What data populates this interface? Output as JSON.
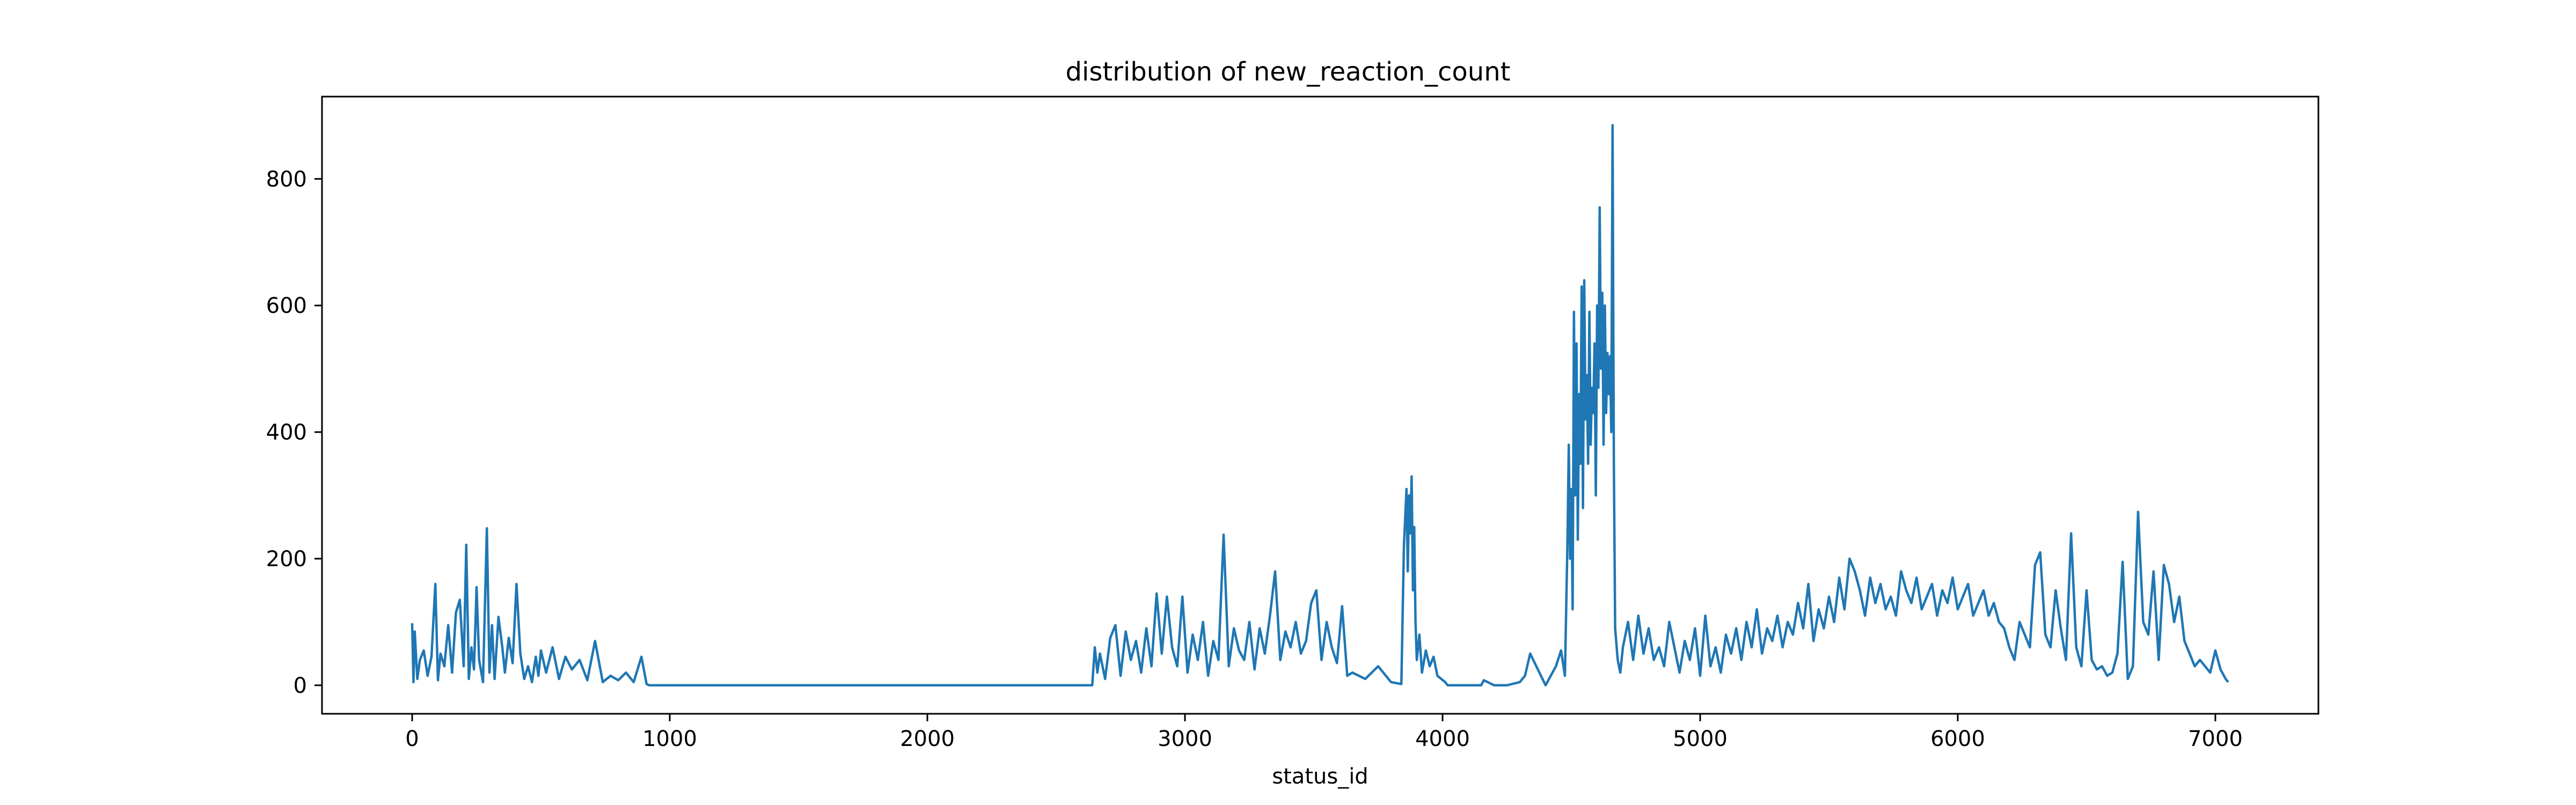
{
  "chart_data": {
    "type": "line",
    "title": "distribution of new_reaction_count",
    "xlabel": "status_id",
    "ylabel": "",
    "xlim": [
      -350,
      7400
    ],
    "ylim": [
      -45,
      930
    ],
    "xticks": [
      0,
      1000,
      2000,
      3000,
      4000,
      5000,
      6000,
      7000
    ],
    "yticks": [
      0,
      200,
      400,
      600,
      800
    ],
    "grid": false,
    "legend": "none",
    "color": "#1f77b4",
    "series": [
      {
        "x": [
          0,
          5,
          10,
          20,
          30,
          45,
          60,
          75,
          90,
          100,
          110,
          125,
          140,
          155,
          170,
          185,
          200,
          210,
          220,
          230,
          240,
          250,
          260,
          275,
          290,
          300,
          310,
          320,
          335,
          350,
          360,
          375,
          390,
          405,
          420,
          435,
          450,
          465,
          480,
          490,
          500,
          520,
          545,
          570,
          595,
          620,
          650,
          680,
          710,
          740,
          770,
          800,
          830,
          860,
          890,
          910,
          920,
          1000,
          1500,
          2000,
          2500,
          2640,
          2650,
          2660,
          2670,
          2690,
          2710,
          2730,
          2750,
          2770,
          2790,
          2810,
          2830,
          2850,
          2870,
          2890,
          2910,
          2930,
          2950,
          2970,
          2990,
          3010,
          3030,
          3050,
          3070,
          3090,
          3110,
          3130,
          3150,
          3170,
          3190,
          3210,
          3230,
          3250,
          3270,
          3290,
          3310,
          3330,
          3350,
          3370,
          3390,
          3410,
          3430,
          3450,
          3470,
          3490,
          3510,
          3530,
          3550,
          3570,
          3590,
          3610,
          3630,
          3650,
          3700,
          3750,
          3800,
          3840,
          3850,
          3860,
          3865,
          3870,
          3875,
          3880,
          3885,
          3890,
          3895,
          3900,
          3910,
          3920,
          3935,
          3950,
          3965,
          3980,
          3995,
          4010,
          4020,
          4050,
          4100,
          4150,
          4160,
          4200,
          4250,
          4300,
          4320,
          4340,
          4400,
          4440,
          4460,
          4475,
          4485,
          4490,
          4495,
          4500,
          4505,
          4510,
          4515,
          4520,
          4525,
          4530,
          4535,
          4540,
          4545,
          4550,
          4555,
          4560,
          4565,
          4570,
          4575,
          4580,
          4585,
          4590,
          4595,
          4600,
          4605,
          4610,
          4615,
          4620,
          4625,
          4630,
          4635,
          4640,
          4645,
          4650,
          4655,
          4660,
          4665,
          4670,
          4680,
          4690,
          4700,
          4720,
          4740,
          4760,
          4780,
          4800,
          4820,
          4840,
          4860,
          4880,
          4900,
          4920,
          4940,
          4960,
          4980,
          5000,
          5020,
          5040,
          5060,
          5080,
          5100,
          5120,
          5140,
          5160,
          5180,
          5200,
          5220,
          5240,
          5260,
          5280,
          5300,
          5320,
          5340,
          5360,
          5380,
          5400,
          5420,
          5440,
          5460,
          5480,
          5500,
          5520,
          5540,
          5560,
          5580,
          5600,
          5620,
          5640,
          5660,
          5680,
          5700,
          5720,
          5740,
          5760,
          5780,
          5800,
          5820,
          5840,
          5860,
          5880,
          5900,
          5920,
          5940,
          5960,
          5980,
          6000,
          6020,
          6040,
          6060,
          6080,
          6100,
          6120,
          6140,
          6160,
          6180,
          6200,
          6220,
          6240,
          6260,
          6280,
          6300,
          6320,
          6340,
          6360,
          6380,
          6400,
          6420,
          6440,
          6460,
          6480,
          6500,
          6520,
          6540,
          6560,
          6580,
          6600,
          6620,
          6640,
          6660,
          6680,
          6700,
          6720,
          6740,
          6760,
          6780,
          6800,
          6820,
          6840,
          6860,
          6880,
          6900,
          6920,
          6940,
          6960,
          6980,
          7000,
          7020,
          7040,
          7050
        ],
        "y": [
          98,
          5,
          85,
          10,
          40,
          55,
          15,
          45,
          160,
          8,
          50,
          30,
          95,
          20,
          115,
          135,
          30,
          222,
          10,
          60,
          25,
          155,
          40,
          5,
          248,
          20,
          95,
          10,
          108,
          60,
          20,
          75,
          35,
          160,
          50,
          10,
          30,
          5,
          45,
          15,
          55,
          20,
          60,
          10,
          45,
          25,
          40,
          8,
          70,
          5,
          15,
          8,
          20,
          5,
          45,
          2,
          0,
          0,
          0,
          0,
          0,
          0,
          60,
          20,
          50,
          10,
          75,
          95,
          15,
          85,
          40,
          70,
          20,
          90,
          30,
          145,
          50,
          140,
          60,
          30,
          140,
          20,
          80,
          40,
          100,
          15,
          70,
          40,
          238,
          30,
          90,
          55,
          40,
          100,
          25,
          90,
          50,
          110,
          180,
          40,
          85,
          60,
          100,
          50,
          70,
          130,
          150,
          40,
          100,
          60,
          35,
          125,
          15,
          20,
          10,
          30,
          5,
          2,
          220,
          310,
          180,
          300,
          240,
          330,
          150,
          250,
          100,
          40,
          80,
          20,
          55,
          30,
          45,
          15,
          10,
          5,
          0,
          0,
          0,
          0,
          8,
          0,
          0,
          5,
          15,
          50,
          0,
          30,
          55,
          15,
          230,
          380,
          200,
          310,
          120,
          590,
          300,
          540,
          230,
          460,
          350,
          630,
          280,
          640,
          420,
          490,
          350,
          590,
          380,
          470,
          430,
          540,
          300,
          600,
          470,
          755,
          500,
          620,
          380,
          600,
          430,
          525,
          460,
          520,
          400,
          885,
          350,
          90,
          40,
          20,
          60,
          100,
          40,
          110,
          50,
          90,
          40,
          60,
          30,
          100,
          60,
          20,
          70,
          40,
          90,
          15,
          110,
          30,
          60,
          20,
          80,
          50,
          90,
          40,
          100,
          60,
          120,
          50,
          90,
          70,
          110,
          60,
          100,
          80,
          130,
          90,
          160,
          70,
          120,
          90,
          140,
          100,
          170,
          120,
          200,
          180,
          150,
          110,
          170,
          130,
          160,
          120,
          140,
          110,
          180,
          150,
          130,
          170,
          120,
          140,
          160,
          110,
          150,
          130,
          170,
          120,
          140,
          160,
          110,
          130,
          150,
          110,
          130,
          100,
          90,
          60,
          40,
          100,
          80,
          60,
          190,
          210,
          80,
          60,
          150,
          90,
          40,
          240,
          60,
          30,
          150,
          40,
          25,
          30,
          15,
          20,
          50,
          195,
          10,
          30,
          274,
          100,
          80,
          180,
          40,
          190,
          160,
          100,
          140,
          70,
          50,
          30,
          40,
          30,
          20,
          55,
          25,
          10,
          5
        ]
      }
    ]
  }
}
